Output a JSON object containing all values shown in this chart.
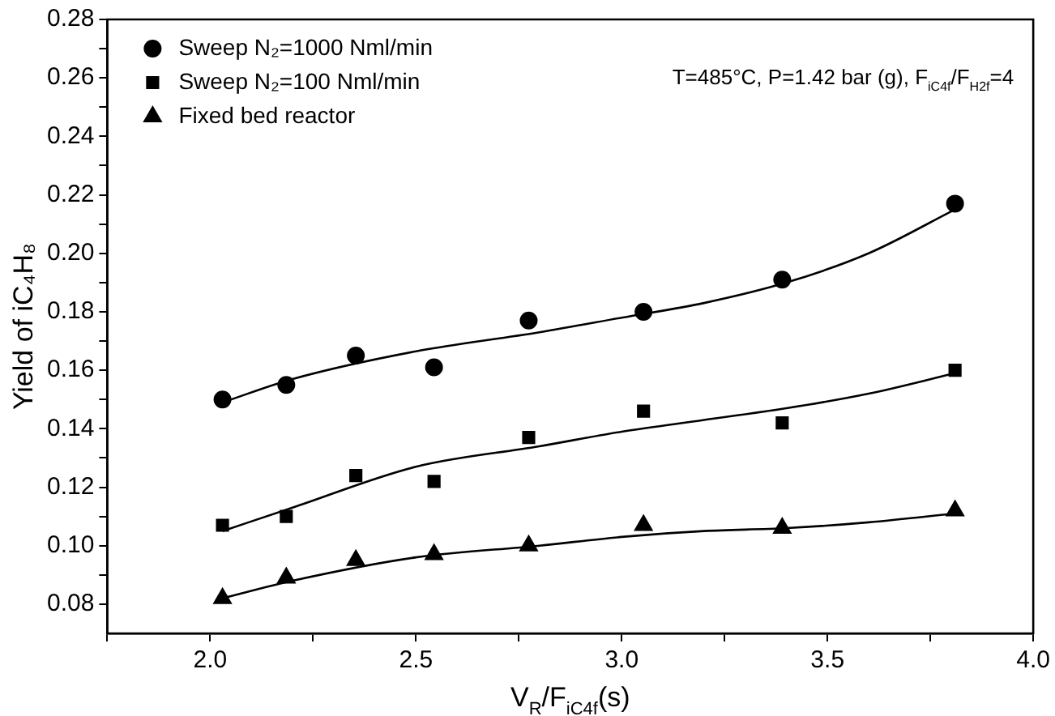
{
  "chart_data": {
    "type": "scatter",
    "xlabel": "V$_{R}$/F$_{iC4f}$(s)",
    "ylabel": "Yield of iC₄H₈",
    "annotations": [
      "T=485°C, P=1.42 bar (g), F$_{iC4f}$/F$_{H2f}$=4"
    ],
    "x": [
      2.03,
      2.185,
      2.354,
      2.544,
      2.774,
      3.053,
      3.39,
      3.81
    ],
    "series": [
      {
        "name": "Sweep N₂=1000 Nml/min",
        "color": "#000000",
        "marker": "circle",
        "values": [
          0.15,
          0.155,
          0.165,
          0.161,
          0.177,
          0.18,
          0.191,
          0.217
        ]
      },
      {
        "name": "Sweep N₂=100 Nml/min",
        "color": "#000000",
        "marker": "square",
        "values": [
          0.107,
          0.11,
          0.124,
          0.122,
          0.137,
          0.146,
          0.142,
          0.16
        ]
      },
      {
        "name": "Fixed bed reactor",
        "color": "#000000",
        "marker": "triangle",
        "values": [
          0.082,
          0.089,
          0.095,
          0.097,
          0.1,
          0.107,
          0.106,
          0.112
        ]
      },
      {
        "type": "line",
        "color": "#000000",
        "marker": "none",
        "x": [
          2.03,
          2.2,
          2.5,
          2.8,
          3.0,
          3.2,
          3.4,
          3.6,
          3.81
        ],
        "values": [
          0.149,
          0.157,
          0.1665,
          0.173,
          0.178,
          0.183,
          0.19,
          0.2,
          0.215
        ]
      },
      {
        "type": "line",
        "color": "#000000",
        "marker": "none",
        "x": [
          2.03,
          2.2,
          2.5,
          2.8,
          3.0,
          3.2,
          3.4,
          3.6,
          3.81
        ],
        "values": [
          0.105,
          0.113,
          0.127,
          0.134,
          0.139,
          0.143,
          0.147,
          0.152,
          0.159
        ]
      },
      {
        "type": "line",
        "color": "#000000",
        "marker": "none",
        "x": [
          2.03,
          2.2,
          2.5,
          2.8,
          3.0,
          3.2,
          3.4,
          3.6,
          3.81
        ],
        "values": [
          0.082,
          0.088,
          0.096,
          0.1,
          0.103,
          0.105,
          0.106,
          0.108,
          0.111
        ]
      }
    ],
    "xlim": [
      1.75,
      4.0
    ],
    "xticks": [
      {
        "value": 1.75,
        "label": null
      },
      {
        "value": 2,
        "label": "2.0"
      },
      {
        "value": 2.25,
        "label": null
      },
      2.5,
      {
        "value": 2.75,
        "label": null
      },
      {
        "value": 3,
        "label": "3.0"
      },
      {
        "value": 3.25,
        "label": null
      },
      3.5,
      {
        "value": 3.75,
        "label": null
      },
      {
        "value": 4,
        "label": "4.0"
      }
    ],
    "ylim": [
      0.07,
      0.28
    ],
    "yticks": [
      0.08,
      {
        "value": 0.09,
        "label": null
      },
      {
        "value": 0.1,
        "label": "0.10"
      },
      {
        "value": 0.11,
        "label": null
      },
      0.12,
      {
        "value": 0.13,
        "label": null
      },
      0.14,
      {
        "value": 0.15,
        "label": null
      },
      0.16,
      {
        "value": 0.17,
        "label": null
      },
      0.18,
      {
        "value": 0.19,
        "label": null
      },
      {
        "value": 0.2,
        "label": "0.20"
      },
      {
        "value": 0.21,
        "label": null
      },
      0.22,
      {
        "value": 0.23,
        "label": null
      },
      0.24,
      {
        "value": 0.25,
        "label": null
      },
      0.26,
      {
        "value": 0.27,
        "label": null
      },
      0.28
    ],
    "grid": false,
    "legend": "top left"
  }
}
